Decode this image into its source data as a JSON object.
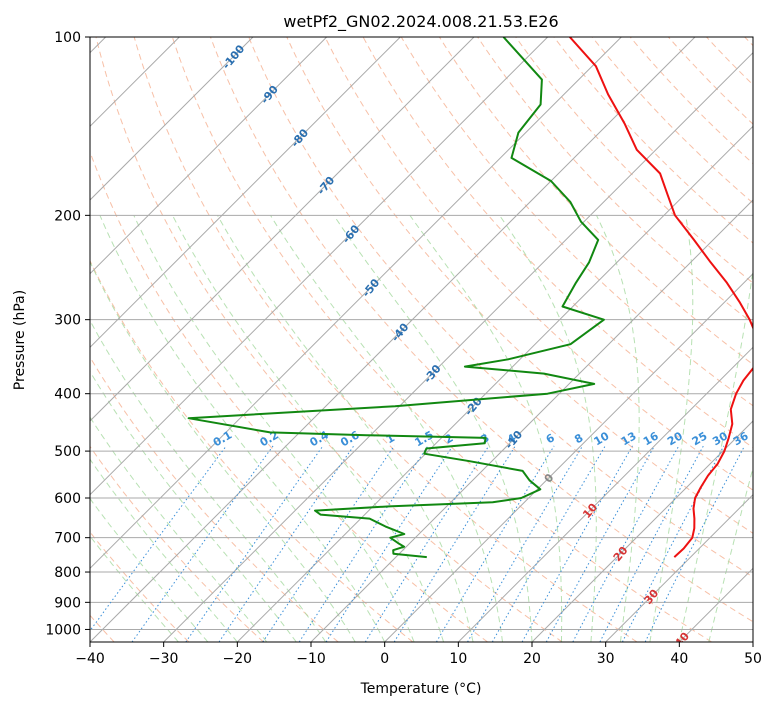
{
  "chart_data": {
    "type": "line",
    "title": "wetPf2_GN02.2024.008.21.53.E26",
    "xlabel": "Temperature (°C)",
    "ylabel": "Pressure (hPa)",
    "xlim": [
      -40,
      50
    ],
    "ylim": [
      1050,
      100
    ],
    "y_scale": "log",
    "grid": true,
    "x_ticks": [
      -40,
      -30,
      -20,
      -10,
      0,
      10,
      20,
      30,
      40,
      50
    ],
    "y_ticks": [
      100,
      200,
      300,
      400,
      500,
      600,
      700,
      800,
      900,
      1000
    ],
    "skew_degrees": 45,
    "colors": {
      "temperature": "#ee1111",
      "dewpoint": "#118811",
      "isotherm": "#aaaaaa",
      "dry_adiabat": "#f4a582",
      "moist_adiabat": "#a6d9a0",
      "mixing_ratio": "#3a8fd8",
      "isotherm_label": "#2a6fb0",
      "warm_isotherm_label": "#d63434",
      "zero_isotherm_label": "#888888",
      "special_curve": "#d9c5a8"
    },
    "series": [
      {
        "key": "temperature",
        "points": [
          [
            755,
            27.8
          ],
          [
            730,
            27.9
          ],
          [
            700,
            27.6
          ],
          [
            675,
            26.6
          ],
          [
            650,
            25.3
          ],
          [
            625,
            23.8
          ],
          [
            600,
            22.6
          ],
          [
            575,
            21.9
          ],
          [
            550,
            21.3
          ],
          [
            525,
            21.0
          ],
          [
            500,
            20.2
          ],
          [
            475,
            19.0
          ],
          [
            450,
            17.6
          ],
          [
            425,
            15.4
          ],
          [
            400,
            14.0
          ],
          [
            380,
            13.2
          ],
          [
            360,
            12.8
          ],
          [
            340,
            11.6
          ],
          [
            320,
            9.0
          ],
          [
            300,
            5.8
          ],
          [
            280,
            2.0
          ],
          [
            260,
            -2.3
          ],
          [
            240,
            -7.3
          ],
          [
            220,
            -12.6
          ],
          [
            200,
            -18.5
          ],
          [
            185,
            -22.2
          ],
          [
            170,
            -26.2
          ],
          [
            155,
            -32.6
          ],
          [
            140,
            -37.8
          ],
          [
            125,
            -44.0
          ],
          [
            112,
            -49.5
          ],
          [
            100,
            -57.0
          ]
        ]
      },
      {
        "key": "dewpoint",
        "points": [
          [
            755,
            -5.8
          ],
          [
            745,
            -10.8
          ],
          [
            735,
            -11.3
          ],
          [
            725,
            -10.3
          ],
          [
            715,
            -11.6
          ],
          [
            700,
            -13.4
          ],
          [
            690,
            -12.0
          ],
          [
            670,
            -15.6
          ],
          [
            650,
            -18.8
          ],
          [
            640,
            -26.0
          ],
          [
            630,
            -27.3
          ],
          [
            620,
            -17.8
          ],
          [
            610,
            -4.3
          ],
          [
            600,
            -1.0
          ],
          [
            580,
            0.4
          ],
          [
            560,
            -2.3
          ],
          [
            540,
            -4.5
          ],
          [
            520,
            -13.0
          ],
          [
            505,
            -20.2
          ],
          [
            495,
            -20.6
          ],
          [
            485,
            -13.4
          ],
          [
            475,
            -14.0
          ],
          [
            470,
            -30.5
          ],
          [
            465,
            -44.0
          ],
          [
            440,
            -57.0
          ],
          [
            420,
            -30.6
          ],
          [
            400,
            -11.6
          ],
          [
            385,
            -6.6
          ],
          [
            370,
            -14.8
          ],
          [
            360,
            -26.5
          ],
          [
            350,
            -21.6
          ],
          [
            330,
            -15.2
          ],
          [
            300,
            -14.0
          ],
          [
            285,
            -21.4
          ],
          [
            260,
            -22.8
          ],
          [
            240,
            -23.8
          ],
          [
            220,
            -25.6
          ],
          [
            205,
            -30.4
          ],
          [
            190,
            -34.5
          ],
          [
            175,
            -40.0
          ],
          [
            160,
            -48.5
          ],
          [
            145,
            -51.0
          ],
          [
            130,
            -51.8
          ],
          [
            118,
            -55.0
          ],
          [
            100,
            -66.0
          ]
        ]
      }
    ],
    "mixing_ratio_labels": [
      "0.1",
      "0.2",
      "0.4",
      "0.6",
      "1",
      "1.5",
      "2",
      "3",
      "4",
      "6",
      "8",
      "10",
      "13",
      "16",
      "20",
      "25",
      "30",
      "36"
    ],
    "mixing_ratio_values": [
      0.1,
      0.2,
      0.4,
      0.6,
      1,
      1.5,
      2,
      3,
      4,
      6,
      8,
      10,
      13,
      16,
      20,
      25,
      30,
      36
    ],
    "isotherm_labels": [
      {
        "text": "-100",
        "value": -100
      },
      {
        "text": "-90",
        "value": -90
      },
      {
        "text": "-80",
        "value": -80
      },
      {
        "text": "-70",
        "value": -70
      },
      {
        "text": "-60",
        "value": -60
      },
      {
        "text": "-50",
        "value": -50
      },
      {
        "text": "-40",
        "value": -40
      },
      {
        "text": "-30",
        "value": -30
      },
      {
        "text": "-20",
        "value": -20
      },
      {
        "text": "-10",
        "value": -10
      },
      {
        "text": "0",
        "value": 0
      },
      {
        "text": "10",
        "value": 10
      },
      {
        "text": "20",
        "value": 20
      },
      {
        "text": "30",
        "value": 30
      },
      {
        "text": "40",
        "value": 40
      }
    ]
  }
}
